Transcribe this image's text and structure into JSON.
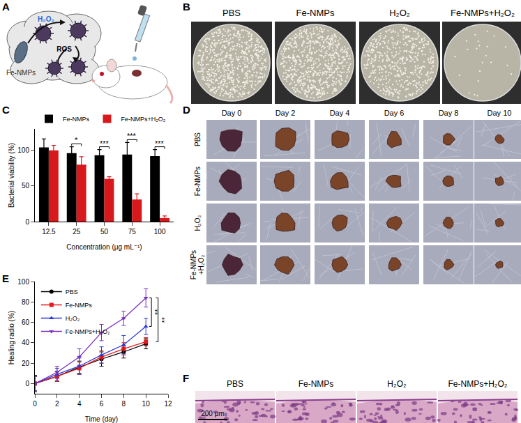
{
  "panel_letters": [
    "A",
    "B",
    "C",
    "D",
    "E",
    "F"
  ],
  "schematic": {
    "labels": [
      "H₂O₂",
      "ROS",
      "Fe-NMPs"
    ]
  },
  "plates": {
    "labels": [
      "PBS",
      "Fe-NMPs",
      "H₂O₂",
      "Fe-NMPs+H₂O₂"
    ]
  },
  "wounds": {
    "days": [
      "Day 0",
      "Day 2",
      "Day 4",
      "Day 6",
      "Day 8",
      "Day 10"
    ],
    "groups": [
      "PBS",
      "Fe-NMPs",
      "H₂O₂",
      "Fe-NMPs+H₂O₂"
    ]
  },
  "histology": {
    "labels": [
      "PBS",
      "Fe-NMPs",
      "H₂O₂",
      "Fe-NMPs+H₂O₂"
    ],
    "scale_bar": "200 μm"
  },
  "chart_data": [
    {
      "type": "bar",
      "categories": [
        "12.5",
        "25",
        "50",
        "75",
        "100"
      ],
      "x_label": "Concentration (μg mL⁻¹)",
      "y_label": "Bacterial viability (%)",
      "ylim": [
        0,
        130
      ],
      "yticks": [
        0,
        50,
        100
      ],
      "legend": "top",
      "series": [
        {
          "name": "Fe-NMPs",
          "color": "#000000",
          "values": [
            104,
            96,
            93,
            94,
            92
          ],
          "errors": [
            12,
            9,
            8,
            17,
            9
          ]
        },
        {
          "name": "Fe-NMPs+H₂O₂",
          "color": "#d7191c",
          "values": [
            100,
            80,
            60,
            31,
            5
          ],
          "errors": [
            7,
            11,
            3,
            8,
            3
          ]
        }
      ],
      "significance": [
        {
          "category": "25",
          "label": "*"
        },
        {
          "category": "50",
          "label": "***"
        },
        {
          "category": "75",
          "label": "***"
        },
        {
          "category": "100",
          "label": "***"
        }
      ]
    },
    {
      "type": "line",
      "x": [
        0,
        2,
        4,
        6,
        8,
        10
      ],
      "x_label": "Time (day)",
      "y_label": "Healing radio (%)",
      "xlim": [
        0,
        12
      ],
      "xticks": [
        0,
        2,
        4,
        6,
        8,
        10,
        12
      ],
      "ylim": [
        -10,
        100
      ],
      "yticks": [
        0,
        20,
        40,
        60,
        80,
        100
      ],
      "legend": "top left",
      "series": [
        {
          "name": "PBS",
          "color": "#000000",
          "marker": "circle",
          "values": [
            0,
            7,
            16,
            24,
            31,
            39
          ],
          "errors": [
            8,
            5,
            6,
            7,
            6,
            5
          ]
        },
        {
          "name": "Fe-NMPs",
          "color": "#e41a1c",
          "marker": "square",
          "values": [
            0,
            7,
            15,
            26,
            34,
            41
          ],
          "errors": [
            7,
            5,
            6,
            6,
            6,
            4
          ]
        },
        {
          "name": "H₂O₂",
          "color": "#2b3bd6",
          "marker": "triangle-up",
          "values": [
            0,
            9,
            17,
            28,
            38,
            56
          ],
          "errors": [
            7,
            6,
            8,
            8,
            9,
            8
          ]
        },
        {
          "name": "Fe-NMPs+H₂O₂",
          "color": "#7b2fbe",
          "marker": "triangle-down",
          "values": [
            0,
            11,
            26,
            50,
            64,
            84
          ],
          "errors": [
            7,
            6,
            8,
            8,
            7,
            9
          ]
        }
      ],
      "significance": [
        {
          "series": [
            "Fe-NMPs+H₂O₂",
            "H₂O₂"
          ],
          "label": "**"
        },
        {
          "series": [
            "Fe-NMPs+H₂O₂",
            "Fe-NMPs"
          ],
          "label": "**"
        }
      ]
    }
  ]
}
